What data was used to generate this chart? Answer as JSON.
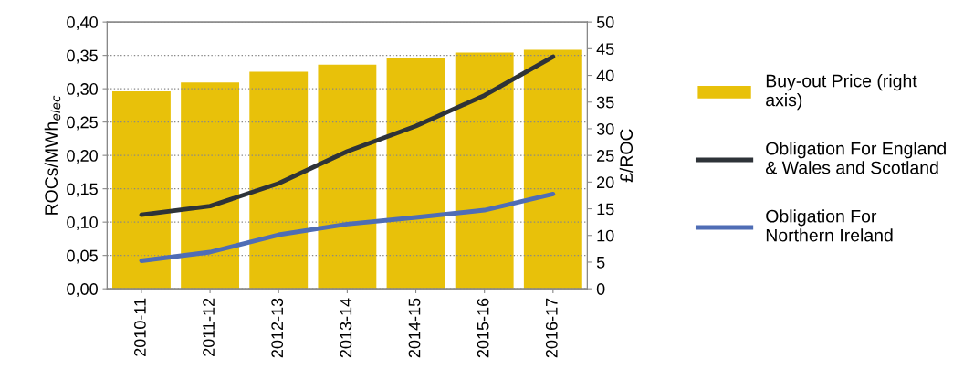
{
  "chart_data": {
    "type": "bar",
    "categories": [
      "2010-11",
      "2011-12",
      "2012-13",
      "2013-14",
      "2014-15",
      "2015-16",
      "2016-17"
    ],
    "ylabel": "ROCs/MWh$_{elec}$",
    "y2label": "£/ROC",
    "series": [
      {
        "name": "Buy-out Price (right axis)",
        "axis": "y2",
        "color": "#e8c10a",
        "values": [
          37.0,
          38.7,
          40.7,
          42.0,
          43.3,
          44.3,
          44.8
        ]
      },
      {
        "name": "Obligation For England & Wales and Scotland",
        "type": "line",
        "color": "#2e3338",
        "values": [
          0.111,
          0.124,
          0.158,
          0.206,
          0.244,
          0.29,
          0.348
        ]
      },
      {
        "name": "Obligation For Northern Ireland",
        "type": "line",
        "color": "#4f6db5",
        "values": [
          0.042,
          0.055,
          0.081,
          0.097,
          0.107,
          0.118,
          0.142
        ]
      }
    ],
    "ylim": [
      0,
      0.4
    ],
    "yticks": [
      {
        "value": 0,
        "label": "0,00"
      },
      {
        "value": 0.05,
        "label": "0,05"
      },
      {
        "value": 0.1,
        "label": "0,10"
      },
      {
        "value": 0.15,
        "label": "0,15"
      },
      {
        "value": 0.2,
        "label": "0,20"
      },
      {
        "value": 0.25,
        "label": "0,25"
      },
      {
        "value": 0.3,
        "label": "0,30"
      },
      {
        "value": 0.35,
        "label": "0,35"
      },
      {
        "value": 0.4,
        "label": "0,40"
      }
    ],
    "y2lim": [
      0,
      50
    ],
    "y2ticks": [
      0,
      5,
      10,
      15,
      20,
      25,
      30,
      35,
      40,
      45,
      50
    ],
    "grid": "y",
    "legend": "right",
    "marker": "none",
    "line_style": "solid"
  }
}
